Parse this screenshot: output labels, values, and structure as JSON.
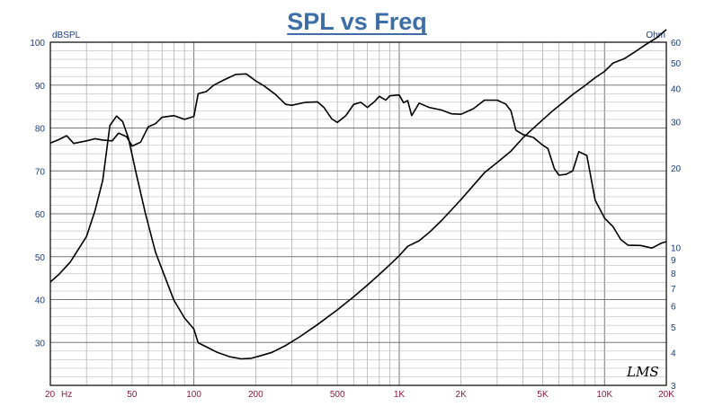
{
  "chart_data": {
    "type": "line",
    "title": "SPL vs Freq",
    "y_left_label": "dBSPL",
    "y_right_label": "Ohm",
    "x_scale": "log",
    "xlim": [
      20,
      20000
    ],
    "ylim_left": [
      20,
      100
    ],
    "ylim_right": [
      3,
      60
    ],
    "y_right_scale": "log",
    "grid": true,
    "watermark": "LMS",
    "x_ticks": [
      {
        "value": 20,
        "label": "20"
      },
      {
        "value": 50,
        "label": "50"
      },
      {
        "value": 100,
        "label": "100"
      },
      {
        "value": 200,
        "label": "200"
      },
      {
        "value": 500,
        "label": "500"
      },
      {
        "value": 1000,
        "label": "1K"
      },
      {
        "value": 2000,
        "label": "2K"
      },
      {
        "value": 5000,
        "label": "5K"
      },
      {
        "value": 10000,
        "label": "10K"
      },
      {
        "value": 20000,
        "label": "20K"
      }
    ],
    "x_unit_label": "Hz",
    "y_left_ticks": [
      {
        "value": 30,
        "label": "30"
      },
      {
        "value": 40,
        "label": "40"
      },
      {
        "value": 50,
        "label": "50"
      },
      {
        "value": 60,
        "label": "60"
      },
      {
        "value": 70,
        "label": "70"
      },
      {
        "value": 80,
        "label": "80"
      },
      {
        "value": 90,
        "label": "90"
      },
      {
        "value": 100,
        "label": "100"
      }
    ],
    "y_right_ticks": [
      {
        "value": 3,
        "label": "3"
      },
      {
        "value": 4,
        "label": "4"
      },
      {
        "value": 5,
        "label": "5"
      },
      {
        "value": 6,
        "label": "6"
      },
      {
        "value": 7,
        "label": "7"
      },
      {
        "value": 8,
        "label": "8"
      },
      {
        "value": 9,
        "label": "9"
      },
      {
        "value": 10,
        "label": "10"
      },
      {
        "value": 20,
        "label": "20"
      },
      {
        "value": 30,
        "label": "30"
      },
      {
        "value": 40,
        "label": "40"
      },
      {
        "value": 50,
        "label": "50"
      },
      {
        "value": 60,
        "label": "60"
      }
    ],
    "series": [
      {
        "axis": "left",
        "color": "#000000",
        "points": [
          [
            20,
            76.5
          ],
          [
            22,
            77.3
          ],
          [
            24,
            78.2
          ],
          [
            26,
            76.4
          ],
          [
            30,
            77.0
          ],
          [
            33,
            77.5
          ],
          [
            36,
            77.2
          ],
          [
            40,
            77.0
          ],
          [
            43,
            78.8
          ],
          [
            47,
            78.0
          ],
          [
            50,
            75.8
          ],
          [
            55,
            76.7
          ],
          [
            60,
            80.3
          ],
          [
            65,
            81.0
          ],
          [
            70,
            82.5
          ],
          [
            80,
            82.9
          ],
          [
            90,
            82.0
          ],
          [
            100,
            82.7
          ],
          [
            105,
            88.0
          ],
          [
            115,
            88.5
          ],
          [
            125,
            90.0
          ],
          [
            140,
            91.2
          ],
          [
            160,
            92.5
          ],
          [
            180,
            92.6
          ],
          [
            200,
            91.0
          ],
          [
            220,
            89.8
          ],
          [
            250,
            87.8
          ],
          [
            280,
            85.5
          ],
          [
            300,
            85.3
          ],
          [
            350,
            86.0
          ],
          [
            400,
            86.1
          ],
          [
            430,
            84.8
          ],
          [
            470,
            82.1
          ],
          [
            500,
            81.3
          ],
          [
            550,
            82.9
          ],
          [
            600,
            85.5
          ],
          [
            650,
            86.0
          ],
          [
            700,
            84.8
          ],
          [
            760,
            86.2
          ],
          [
            800,
            87.4
          ],
          [
            860,
            86.5
          ],
          [
            900,
            87.5
          ],
          [
            1000,
            87.7
          ],
          [
            1050,
            85.9
          ],
          [
            1100,
            86.4
          ],
          [
            1150,
            82.9
          ],
          [
            1250,
            85.8
          ],
          [
            1400,
            84.8
          ],
          [
            1600,
            84.2
          ],
          [
            1800,
            83.3
          ],
          [
            2000,
            83.2
          ],
          [
            2300,
            84.5
          ],
          [
            2600,
            86.5
          ],
          [
            3000,
            86.5
          ],
          [
            3300,
            85.6
          ],
          [
            3500,
            84.0
          ],
          [
            3700,
            79.5
          ],
          [
            4000,
            78.5
          ],
          [
            4500,
            77.8
          ],
          [
            5000,
            76.0
          ],
          [
            5300,
            75.2
          ],
          [
            5700,
            70.5
          ],
          [
            6000,
            69.0
          ],
          [
            6500,
            69.2
          ],
          [
            7000,
            70.0
          ],
          [
            7500,
            74.5
          ],
          [
            8200,
            73.6
          ],
          [
            9000,
            63.2
          ],
          [
            10000,
            59.0
          ],
          [
            11000,
            57.0
          ],
          [
            12000,
            54.0
          ],
          [
            13000,
            52.7
          ],
          [
            15000,
            52.6
          ],
          [
            17000,
            52.0
          ],
          [
            19000,
            53.2
          ],
          [
            20000,
            53.5
          ]
        ]
      },
      {
        "axis": "right",
        "color": "#000000",
        "points": [
          [
            20,
            7.4
          ],
          [
            22,
            7.9
          ],
          [
            25,
            8.8
          ],
          [
            30,
            11.0
          ],
          [
            33,
            13.8
          ],
          [
            36,
            18.0
          ],
          [
            39,
            29.0
          ],
          [
            42,
            31.5
          ],
          [
            45,
            30.0
          ],
          [
            48,
            26.0
          ],
          [
            52,
            19.5
          ],
          [
            58,
            13.5
          ],
          [
            65,
            9.6
          ],
          [
            72,
            7.8
          ],
          [
            80,
            6.3
          ],
          [
            90,
            5.4
          ],
          [
            100,
            4.9
          ],
          [
            105,
            4.35
          ],
          [
            115,
            4.2
          ],
          [
            130,
            4.0
          ],
          [
            150,
            3.85
          ],
          [
            170,
            3.78
          ],
          [
            190,
            3.8
          ],
          [
            210,
            3.88
          ],
          [
            240,
            4.0
          ],
          [
            280,
            4.25
          ],
          [
            330,
            4.6
          ],
          [
            400,
            5.1
          ],
          [
            500,
            5.8
          ],
          [
            600,
            6.5
          ],
          [
            700,
            7.2
          ],
          [
            800,
            7.9
          ],
          [
            900,
            8.6
          ],
          [
            1000,
            9.3
          ],
          [
            1100,
            10.1
          ],
          [
            1250,
            10.6
          ],
          [
            1400,
            11.4
          ],
          [
            1600,
            12.6
          ],
          [
            1800,
            13.9
          ],
          [
            2000,
            15.2
          ],
          [
            2300,
            17.2
          ],
          [
            2600,
            19.2
          ],
          [
            3000,
            21.0
          ],
          [
            3500,
            23.2
          ],
          [
            4000,
            26.0
          ],
          [
            4500,
            28.3
          ],
          [
            5000,
            30.5
          ],
          [
            5600,
            33.0
          ],
          [
            6300,
            35.5
          ],
          [
            7000,
            38.0
          ],
          [
            8000,
            41.0
          ],
          [
            9000,
            44.0
          ],
          [
            10000,
            46.5
          ],
          [
            11000,
            50.0
          ],
          [
            12500,
            52.0
          ],
          [
            14000,
            55.0
          ],
          [
            16000,
            59.0
          ],
          [
            18000,
            62.5
          ],
          [
            20000,
            67.0
          ]
        ]
      }
    ]
  }
}
